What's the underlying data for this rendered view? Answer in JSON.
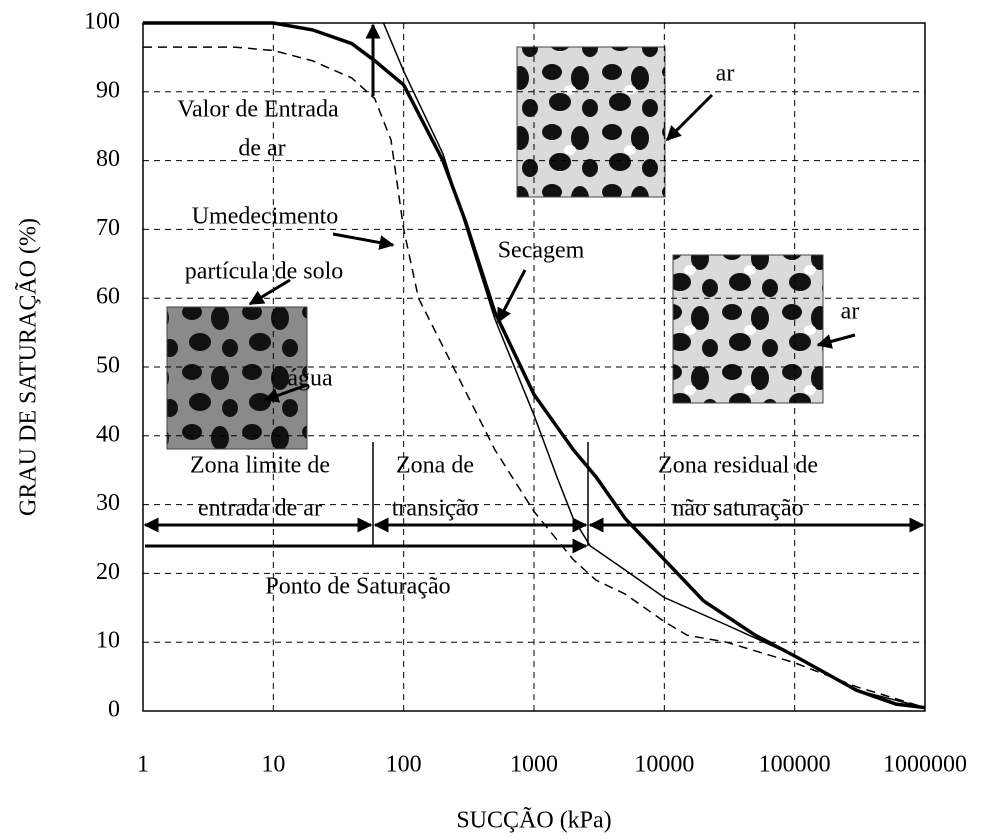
{
  "chart_data": {
    "type": "line",
    "xlabel": "SUCÇÃO (kPa)",
    "ylabel": "GRAU DE SATURAÇÃO (%)",
    "xscale": "log",
    "grid": true,
    "xlim": [
      1,
      1000000
    ],
    "xticks": [
      1,
      10,
      100,
      1000,
      10000,
      100000,
      1000000
    ],
    "ylim": [
      0,
      100
    ],
    "yticks": [
      0,
      10,
      20,
      30,
      40,
      50,
      60,
      70,
      80,
      90,
      100
    ],
    "series": [
      {
        "name": "Secagem",
        "color": "#000000",
        "style": "thick",
        "x": [
          1,
          10,
          20,
          40,
          60,
          100,
          200,
          300,
          500,
          1000,
          2000,
          3000,
          5000,
          10000,
          20000,
          50000,
          100000,
          300000,
          600000,
          1000000
        ],
        "values": [
          100,
          100,
          99,
          97,
          94.5,
          91,
          80,
          71,
          58,
          46,
          38,
          34,
          28,
          22,
          16,
          11,
          8,
          3,
          1,
          0.5
        ]
      },
      {
        "color": "#000000",
        "style": "thin",
        "x": [
          70,
          100,
          200,
          500,
          1000,
          1500,
          2000,
          2700,
          5000,
          10000,
          30000,
          100000,
          300000,
          1000000
        ],
        "values": [
          100,
          93,
          81,
          57,
          43,
          34,
          28,
          24,
          20.5,
          16.5,
          12.5,
          8,
          3,
          0.5
        ]
      },
      {
        "name": "Umedecimento",
        "color": "#000000",
        "style": "dashed",
        "x": [
          1,
          2,
          5,
          10,
          20,
          40,
          60,
          80,
          100,
          130,
          200,
          500,
          1000,
          2000,
          3000,
          5000,
          10000,
          15000,
          30000,
          100000,
          300000,
          1000000
        ],
        "values": [
          96.5,
          96.5,
          96.5,
          96,
          94.5,
          92,
          89,
          83,
          70,
          60,
          53,
          38,
          29,
          22,
          19,
          17,
          13,
          11,
          10,
          7,
          3.5,
          0.5
        ]
      }
    ],
    "annotations": [
      "Valor de Entrada",
      "de ar",
      "partícula de solo",
      "ar",
      "ar",
      "água",
      "Zona limite de",
      "entrada de ar",
      "Zona de",
      "transição",
      "Zona residual de",
      "não saturação",
      "Ponto de Saturação"
    ]
  }
}
